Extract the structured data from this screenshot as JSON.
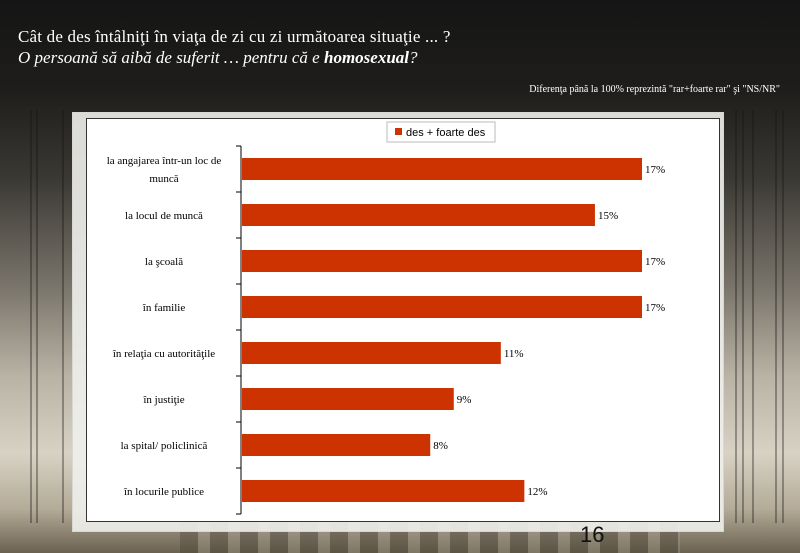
{
  "header": {
    "question_line1": "Cât de des întâlniţi în viaţa de zi cu zi următoarea situaţie ... ?",
    "question_line2_prefix": "O persoană să aibă de suferit … pentru că e ",
    "question_line2_bold": "homosexual",
    "question_line2_suffix": "?",
    "note": "Diferenţa până la 100% reprezintă  \"rar+foarte rar\" şi \"NS/NR\""
  },
  "page_number": "16",
  "chart_data": {
    "type": "bar",
    "orientation": "horizontal",
    "categories": [
      "la angajarea într-un loc de muncă",
      "la locul de muncă",
      "la şcoală",
      "în familie",
      "în relaţia cu autorităţile",
      "în justiţie",
      "la spital/ policlinică",
      "în locurile publice"
    ],
    "category_lines": [
      [
        "la angajarea într-un loc de",
        "muncă"
      ],
      [
        "la locul de muncă"
      ],
      [
        "la şcoală"
      ],
      [
        "în familie"
      ],
      [
        "în relaţia cu autorităţile"
      ],
      [
        "în justiţie"
      ],
      [
        "la spital/ policlinică"
      ],
      [
        "în locurile publice"
      ]
    ],
    "series": [
      {
        "name": "des + foarte des",
        "values": [
          17,
          15,
          17,
          17,
          11,
          9,
          8,
          12
        ],
        "color": "#cc3300"
      }
    ],
    "data_labels": [
      "17%",
      "15%",
      "17%",
      "17%",
      "11%",
      "9%",
      "8%",
      "12%"
    ],
    "xlim": [
      0,
      20
    ],
    "legend_position": "top-center",
    "grid": false
  }
}
